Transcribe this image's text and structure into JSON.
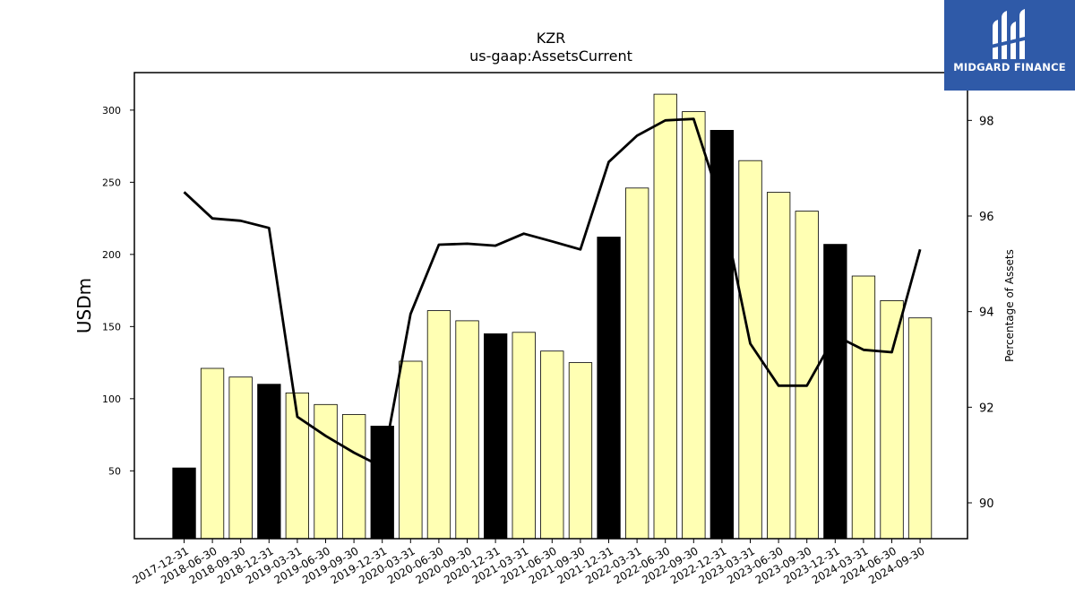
{
  "chart_data": {
    "type": "bar",
    "title": "KZR",
    "subtitle": "us-gaap:AssetsCurrent",
    "ylabel": "USDm",
    "y2label": "Percentage of Assets",
    "ylim": [
      3,
      326
    ],
    "y2lim": [
      89.25,
      99.0
    ],
    "yticks": [
      50,
      100,
      150,
      200,
      250,
      300
    ],
    "y2ticks": [
      90,
      92,
      94,
      96,
      98
    ],
    "categories": [
      "2017-12-31",
      "2018-06-30",
      "2018-09-30",
      "2018-12-31",
      "2019-03-31",
      "2019-06-30",
      "2019-09-30",
      "2019-12-31",
      "2020-03-31",
      "2020-06-30",
      "2020-09-30",
      "2020-12-31",
      "2021-03-31",
      "2021-06-30",
      "2021-09-30",
      "2021-12-31",
      "2022-03-31",
      "2022-06-30",
      "2022-09-30",
      "2022-12-31",
      "2023-03-31",
      "2023-06-30",
      "2023-09-30",
      "2023-12-31",
      "2024-03-31",
      "2024-06-30",
      "2024-09-30"
    ],
    "values": [
      52,
      121,
      115,
      110,
      104,
      96,
      89,
      81,
      126,
      161,
      154,
      145,
      146,
      133,
      125,
      212,
      246,
      311,
      299,
      286,
      265,
      243,
      230,
      207,
      185,
      168,
      156
    ],
    "year_end": [
      true,
      false,
      false,
      true,
      false,
      false,
      false,
      true,
      false,
      false,
      false,
      true,
      false,
      false,
      false,
      true,
      false,
      false,
      false,
      true,
      false,
      false,
      false,
      true,
      false,
      false,
      false
    ],
    "percentage": [
      96.5,
      95.95,
      95.9,
      95.75,
      91.8,
      91.4,
      91.05,
      90.75,
      93.95,
      95.4,
      95.42,
      95.38,
      95.63,
      95.47,
      95.3,
      97.13,
      97.68,
      98.0,
      98.03,
      96.2,
      93.33,
      92.45,
      92.45,
      93.5,
      93.2,
      93.15,
      95.3
    ],
    "colors": {
      "year_end_bar": "#000000",
      "other_bar": "#ffffb3",
      "line": "#000000"
    }
  },
  "logo": {
    "text": "MIDGARD FINANCE",
    "background": "#2f5aa8"
  }
}
